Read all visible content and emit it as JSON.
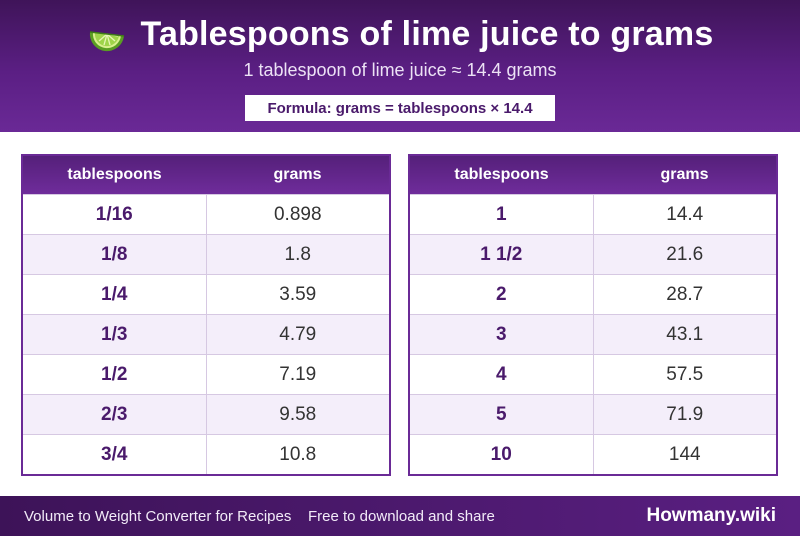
{
  "header": {
    "title": "Tablespoons of lime juice to grams",
    "icon": "lime-icon",
    "subtitle": "1 tablespoon of lime juice ≈ 14.4 grams",
    "formula": "Formula: grams = tablespoons × 14.4"
  },
  "tables": {
    "left": {
      "col_tbsp": "tablespoons",
      "col_grams": "grams",
      "rows": [
        {
          "tbsp": "1/16",
          "grams": "0.898"
        },
        {
          "tbsp": "1/8",
          "grams": "1.8"
        },
        {
          "tbsp": "1/4",
          "grams": "3.59"
        },
        {
          "tbsp": "1/3",
          "grams": "4.79"
        },
        {
          "tbsp": "1/2",
          "grams": "7.19"
        },
        {
          "tbsp": "2/3",
          "grams": "9.58"
        },
        {
          "tbsp": "3/4",
          "grams": "10.8"
        }
      ]
    },
    "right": {
      "col_tbsp": "tablespoons",
      "col_grams": "grams",
      "rows": [
        {
          "tbsp": "1",
          "grams": "14.4"
        },
        {
          "tbsp": "1 1/2",
          "grams": "21.6"
        },
        {
          "tbsp": "2",
          "grams": "28.7"
        },
        {
          "tbsp": "3",
          "grams": "43.1"
        },
        {
          "tbsp": "4",
          "grams": "57.5"
        },
        {
          "tbsp": "5",
          "grams": "71.9"
        },
        {
          "tbsp": "10",
          "grams": "144"
        }
      ]
    }
  },
  "footer": {
    "left_text": "Volume to Weight Converter for Recipes",
    "middle_text": "Free to download and share",
    "brand": "Howmany.wiki"
  },
  "colors": {
    "brand_purple": "#5b1f84",
    "accent_purple_text": "#4a1a6b",
    "lime_green": "#8cc63f"
  }
}
